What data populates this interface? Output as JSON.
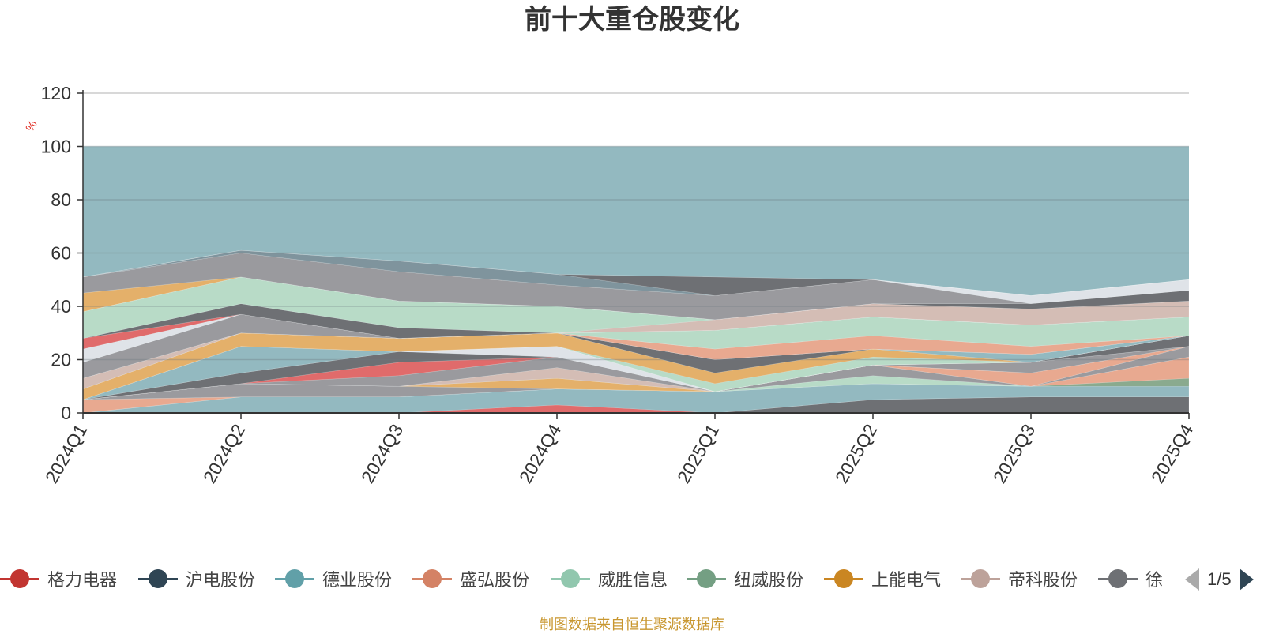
{
  "title": "前十大重仓股变化",
  "source": "制图数据来自恒生聚源数据库",
  "legend_page": "1/5",
  "colors": {
    "background": "#93b9c0",
    "grid": "#cccccc",
    "axis": "#333333",
    "unit": "#e0261c",
    "source": "#c8962e"
  },
  "legend": [
    {
      "name": "格力电器",
      "color": "#c23531"
    },
    {
      "name": "沪电股份",
      "color": "#2f4554"
    },
    {
      "name": "德业股份",
      "color": "#61a0a8"
    },
    {
      "name": "盛弘股份",
      "color": "#d48265"
    },
    {
      "name": "威胜信息",
      "color": "#91c7ae"
    },
    {
      "name": "纽威股份",
      "color": "#749f83"
    },
    {
      "name": "上能电气",
      "color": "#ca8622"
    },
    {
      "name": "帝科股份",
      "color": "#bda29a"
    },
    {
      "name": "徐",
      "color": "#6e7074"
    }
  ],
  "chart_data": {
    "type": "area",
    "stacked": true,
    "title": "前十大重仓股变化",
    "ylabel": "%",
    "ylim": [
      0,
      120
    ],
    "yticks": [
      0,
      20,
      40,
      60,
      80,
      100,
      120
    ],
    "grid": true,
    "x": [
      "2024Q1",
      "2024Q2",
      "2024Q3",
      "2024Q4",
      "2025Q1",
      "2025Q2",
      "2025Q3",
      "2025Q4"
    ],
    "background_band": {
      "value": 100,
      "color": "#93b9c0"
    },
    "series": [
      {
        "color": "#6e7074",
        "values": [
          0,
          0,
          0,
          0,
          0,
          5,
          6,
          6
        ]
      },
      {
        "color": "#e06b6b",
        "values": [
          0,
          0,
          0,
          3,
          0,
          0,
          0,
          0
        ]
      },
      {
        "color": "#93b9c0",
        "values": [
          0,
          6,
          6,
          6,
          8,
          6,
          4,
          4
        ]
      },
      {
        "color": "#8aaa8e",
        "values": [
          0,
          0,
          0,
          0,
          0,
          0,
          0,
          3
        ]
      },
      {
        "color": "#e8a990",
        "values": [
          5,
          0,
          0,
          0,
          0,
          0,
          0,
          8
        ]
      },
      {
        "color": "#b8dbc7",
        "values": [
          0,
          0,
          0,
          0,
          0,
          3,
          0,
          0
        ]
      },
      {
        "color": "#9a9a9e",
        "values": [
          0,
          5,
          4,
          0,
          0,
          4,
          0,
          4
        ]
      },
      {
        "color": "#e4b06a",
        "values": [
          0,
          0,
          0,
          4,
          0,
          0,
          0,
          0
        ]
      },
      {
        "color": "#e8a990",
        "values": [
          0,
          0,
          0,
          0,
          0,
          0,
          5,
          0
        ]
      },
      {
        "color": "#d4bdb5",
        "values": [
          0,
          0,
          0,
          4,
          0,
          0,
          0,
          0
        ]
      },
      {
        "color": "#9a9a9e",
        "values": [
          0,
          0,
          4,
          4,
          0,
          0,
          4,
          0
        ]
      },
      {
        "color": "#e06b6b",
        "values": [
          0,
          0,
          5,
          0,
          0,
          0,
          0,
          0
        ]
      },
      {
        "color": "#6e7074",
        "values": [
          0,
          4,
          4,
          0,
          0,
          0,
          0,
          4
        ]
      },
      {
        "color": "#dfe3e8",
        "values": [
          0,
          0,
          0,
          4,
          0,
          0,
          0,
          0
        ]
      },
      {
        "color": "#93b9c0",
        "values": [
          0,
          10,
          0,
          0,
          0,
          0,
          0,
          0
        ]
      },
      {
        "color": "#e8a990",
        "values": [
          0,
          0,
          0,
          0,
          0,
          0,
          0,
          0
        ]
      },
      {
        "color": "#b8dbc7",
        "values": [
          0,
          0,
          0,
          0,
          3,
          3,
          0,
          0
        ]
      },
      {
        "color": "#e4b06a",
        "values": [
          4,
          5,
          5,
          5,
          4,
          3,
          0,
          0
        ]
      },
      {
        "color": "#6e7074",
        "values": [
          0,
          0,
          0,
          0,
          5,
          0,
          0,
          0
        ]
      },
      {
        "color": "#93b9c0",
        "values": [
          0,
          0,
          0,
          0,
          0,
          0,
          3,
          0
        ]
      },
      {
        "color": "#d4bdb5",
        "values": [
          4,
          0,
          0,
          0,
          0,
          0,
          0,
          0
        ]
      },
      {
        "color": "#6e7074",
        "values": [
          0,
          0,
          0,
          0,
          0,
          0,
          0,
          0
        ]
      },
      {
        "color": "#e8a990",
        "values": [
          0,
          0,
          0,
          0,
          4,
          5,
          3,
          0
        ]
      },
      {
        "color": "#9a9a9e",
        "values": [
          6,
          7,
          0,
          0,
          0,
          0,
          0,
          0
        ]
      },
      {
        "color": "#b8dbc7",
        "values": [
          0,
          0,
          0,
          0,
          7,
          7,
          8,
          7
        ]
      },
      {
        "color": "#dfe3e8",
        "values": [
          5,
          0,
          0,
          0,
          0,
          0,
          0,
          0
        ]
      },
      {
        "color": "#e06b6b",
        "values": [
          4,
          0,
          0,
          0,
          0,
          0,
          0,
          0
        ]
      },
      {
        "color": "#6e7074",
        "values": [
          0,
          4,
          4,
          0,
          0,
          0,
          0,
          0
        ]
      },
      {
        "color": "#d4bdb5",
        "values": [
          0,
          0,
          0,
          0,
          4,
          5,
          6,
          6
        ]
      },
      {
        "color": "#b8dbc7",
        "values": [
          10,
          10,
          10,
          10,
          0,
          0,
          0,
          0
        ]
      },
      {
        "color": "#93b9c0",
        "values": [
          0,
          0,
          0,
          0,
          0,
          0,
          0,
          0
        ]
      },
      {
        "color": "#6e7074",
        "values": [
          0,
          0,
          0,
          0,
          0,
          0,
          2,
          4
        ]
      },
      {
        "color": "#e4b06a",
        "values": [
          7,
          0,
          0,
          0,
          0,
          0,
          0,
          0
        ]
      },
      {
        "color": "#9a9a9e",
        "values": [
          6,
          9,
          11,
          8,
          9,
          9,
          0,
          0
        ]
      },
      {
        "color": "#dfe3e8",
        "values": [
          0,
          0,
          0,
          0,
          0,
          0,
          3,
          4
        ]
      },
      {
        "color": "#7f949d",
        "values": [
          0,
          1,
          4,
          4,
          0,
          0,
          0,
          0
        ]
      },
      {
        "color": "#6e7074",
        "values": [
          0,
          0,
          0,
          0,
          7,
          0,
          0,
          0
        ]
      },
      {
        "color": "#e06b6b",
        "values": [
          0,
          0,
          0,
          0,
          0,
          0,
          0,
          0
        ]
      }
    ]
  }
}
